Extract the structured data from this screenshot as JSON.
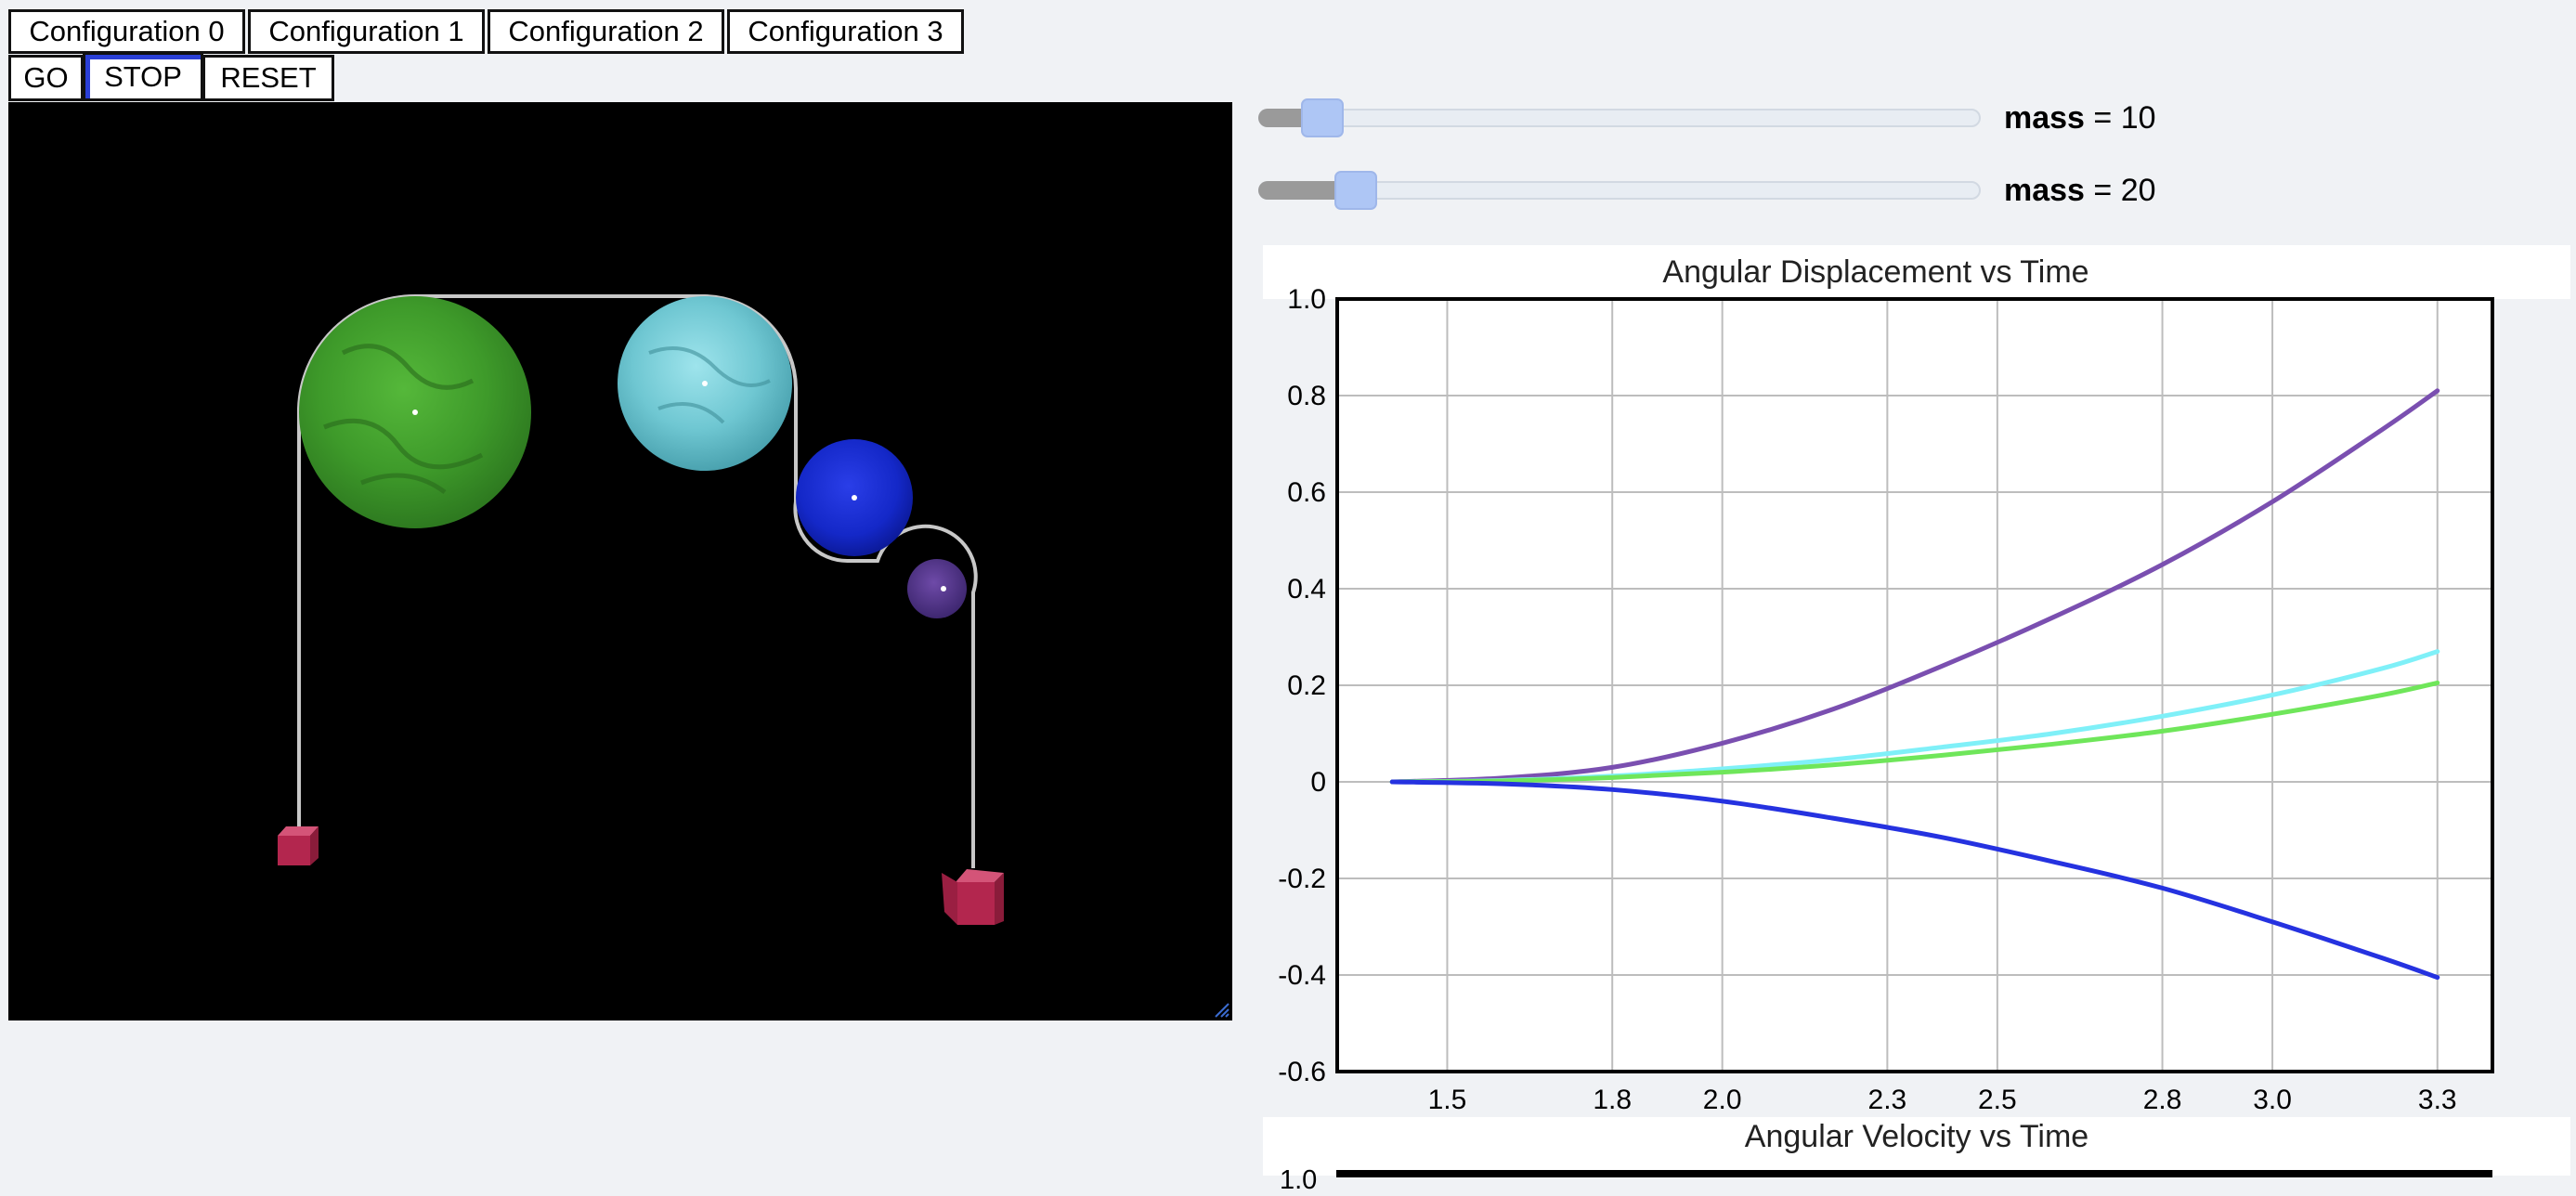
{
  "config_buttons": [
    "Configuration 0",
    "Configuration 1",
    "Configuration 2",
    "Configuration 3"
  ],
  "controls": {
    "go": "GO",
    "stop": "STOP",
    "reset": "RESET"
  },
  "sliders": [
    {
      "label": "mass",
      "eq": " = ",
      "value": "10",
      "fraction": 0.05
    },
    {
      "label": "mass",
      "eq": " = ",
      "value": "20",
      "fraction": 0.1
    }
  ],
  "colors": {
    "green": "#6fe65a",
    "cyan": "#7ff0f8",
    "blue": "#2532e0",
    "purple": "#7a4fb0",
    "box": "#b3264e",
    "string": "#c8c8c8"
  },
  "chart_data": [
    {
      "type": "line",
      "title": "Angular Displacement vs Time",
      "xlabel": "",
      "ylabel": "",
      "xlim": [
        1.3,
        3.4
      ],
      "ylim": [
        -0.6,
        1.0
      ],
      "xticks": [
        "1.5",
        "1.8",
        "2.0",
        "2.3",
        "2.5",
        "2.8",
        "3.0",
        "3.3"
      ],
      "yticks": [
        "-0.6",
        "-0.4",
        "-0.2",
        "0",
        "0.2",
        "0.4",
        "0.6",
        "0.8",
        "1.0"
      ],
      "grid": true,
      "series": [
        {
          "color": "#7a4fb0",
          "x": [
            1.4,
            1.6,
            1.8,
            2.0,
            2.2,
            2.4,
            2.6,
            2.8,
            3.0,
            3.2,
            3.3
          ],
          "y": [
            0.0,
            0.008,
            0.03,
            0.08,
            0.15,
            0.24,
            0.34,
            0.45,
            0.58,
            0.73,
            0.81
          ]
        },
        {
          "color": "#7ff0f8",
          "x": [
            1.4,
            1.6,
            1.8,
            2.0,
            2.2,
            2.4,
            2.6,
            2.8,
            3.0,
            3.2,
            3.3
          ],
          "y": [
            0.0,
            0.003,
            0.012,
            0.027,
            0.046,
            0.072,
            0.1,
            0.136,
            0.18,
            0.235,
            0.27
          ]
        },
        {
          "color": "#6fe65a",
          "x": [
            1.4,
            1.6,
            1.8,
            2.0,
            2.2,
            2.4,
            2.6,
            2.8,
            3.0,
            3.2,
            3.3
          ],
          "y": [
            0.0,
            0.002,
            0.009,
            0.02,
            0.035,
            0.055,
            0.078,
            0.105,
            0.14,
            0.18,
            0.205
          ]
        },
        {
          "color": "#2532e0",
          "x": [
            1.4,
            1.6,
            1.8,
            2.0,
            2.2,
            2.4,
            2.6,
            2.8,
            3.0,
            3.2,
            3.3
          ],
          "y": [
            0.0,
            -0.004,
            -0.016,
            -0.04,
            -0.075,
            -0.115,
            -0.165,
            -0.22,
            -0.29,
            -0.365,
            -0.405
          ]
        }
      ]
    },
    {
      "type": "line",
      "title": "Angular Velocity vs Time",
      "yticks_visible": [
        "1.0"
      ]
    }
  ]
}
